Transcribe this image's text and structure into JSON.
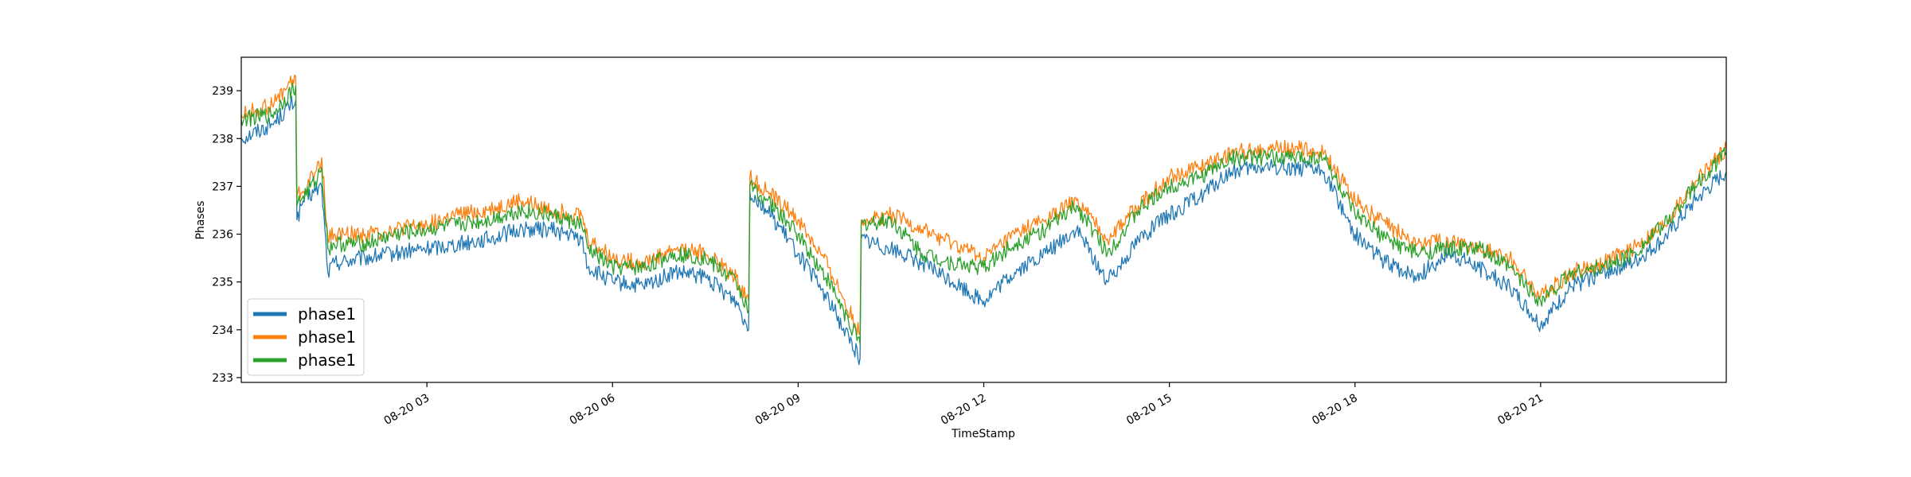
{
  "chart_data": {
    "type": "line",
    "title": "",
    "xlabel": "TimeStamp",
    "ylabel": "Phases",
    "x_range_hours": [
      0.0,
      24.0
    ],
    "x_ticks": [
      {
        "label": "08-20 03",
        "hour": 3
      },
      {
        "label": "08-20 06",
        "hour": 6
      },
      {
        "label": "08-20 09",
        "hour": 9
      },
      {
        "label": "08-20 12",
        "hour": 12
      },
      {
        "label": "08-20 15",
        "hour": 15
      },
      {
        "label": "08-20 18",
        "hour": 18
      },
      {
        "label": "08-20 21",
        "hour": 21
      }
    ],
    "ylim": [
      232.9,
      239.7
    ],
    "y_ticks": [
      233,
      234,
      235,
      236,
      237,
      238,
      239
    ],
    "grid": false,
    "legend": {
      "placement": "lower-left",
      "entries": [
        "phase1",
        "phase1",
        "phase1"
      ]
    },
    "colors": {
      "blue": "#1f77b4",
      "orange": "#ff7f0e",
      "green": "#2ca02c"
    },
    "x": [
      0.0,
      0.5,
      0.88,
      0.9,
      1.0,
      1.2,
      1.3,
      1.4,
      1.5,
      2.0,
      2.5,
      3.0,
      3.5,
      4.0,
      4.5,
      5.0,
      5.5,
      5.6,
      6.0,
      6.5,
      7.0,
      7.5,
      8.0,
      8.2,
      8.22,
      8.5,
      9.0,
      9.5,
      10.0,
      10.02,
      10.5,
      11.0,
      11.5,
      12.0,
      12.5,
      13.0,
      13.5,
      14.0,
      14.5,
      15.0,
      15.5,
      16.0,
      16.5,
      17.0,
      17.5,
      18.0,
      18.5,
      19.0,
      19.5,
      20.0,
      20.5,
      21.0,
      21.5,
      22.0,
      22.5,
      23.0,
      23.5,
      24.0
    ],
    "series": [
      {
        "name": "phase1",
        "color": "#1f77b4",
        "values": [
          238.0,
          238.3,
          238.8,
          236.3,
          236.7,
          236.9,
          237.0,
          235.2,
          235.4,
          235.5,
          235.6,
          235.7,
          235.8,
          235.9,
          236.1,
          236.1,
          235.9,
          235.3,
          235.0,
          234.9,
          235.2,
          235.1,
          234.6,
          234.0,
          236.9,
          236.5,
          235.6,
          234.6,
          233.4,
          235.9,
          235.7,
          235.4,
          235.0,
          234.6,
          235.2,
          235.6,
          236.1,
          235.0,
          235.9,
          236.4,
          236.8,
          237.3,
          237.4,
          237.4,
          237.3,
          236.0,
          235.4,
          235.1,
          235.6,
          235.3,
          234.9,
          234.1,
          234.9,
          235.2,
          235.4,
          235.9,
          236.7,
          237.3
        ]
      },
      {
        "name": "phase1",
        "color": "#ff7f0e",
        "values": [
          238.5,
          238.7,
          239.3,
          236.8,
          236.9,
          237.3,
          237.6,
          235.9,
          236.0,
          236.0,
          236.1,
          236.2,
          236.4,
          236.5,
          236.7,
          236.5,
          236.4,
          235.9,
          235.5,
          235.4,
          235.7,
          235.6,
          235.1,
          234.6,
          237.2,
          236.9,
          236.3,
          235.3,
          233.9,
          236.3,
          236.4,
          236.1,
          235.8,
          235.5,
          236.0,
          236.3,
          236.7,
          235.9,
          236.6,
          237.2,
          237.4,
          237.7,
          237.8,
          237.8,
          237.7,
          236.7,
          236.2,
          235.8,
          235.9,
          235.7,
          235.5,
          234.7,
          235.2,
          235.4,
          235.7,
          236.2,
          237.1,
          237.8
        ]
      },
      {
        "name": "phase1",
        "color": "#2ca02c",
        "values": [
          238.4,
          238.5,
          239.1,
          236.6,
          236.8,
          237.1,
          237.4,
          235.7,
          235.8,
          235.8,
          236.0,
          236.1,
          236.2,
          236.3,
          236.5,
          236.4,
          236.2,
          235.7,
          235.3,
          235.3,
          235.6,
          235.5,
          235.0,
          234.4,
          237.0,
          236.7,
          236.0,
          235.0,
          233.7,
          236.2,
          236.3,
          235.6,
          235.4,
          235.3,
          235.8,
          236.1,
          236.6,
          235.6,
          236.5,
          237.0,
          237.2,
          237.6,
          237.6,
          237.6,
          237.6,
          236.4,
          235.9,
          235.6,
          235.7,
          235.7,
          235.3,
          234.6,
          235.2,
          235.3,
          235.6,
          236.2,
          237.0,
          237.7
        ]
      }
    ]
  }
}
